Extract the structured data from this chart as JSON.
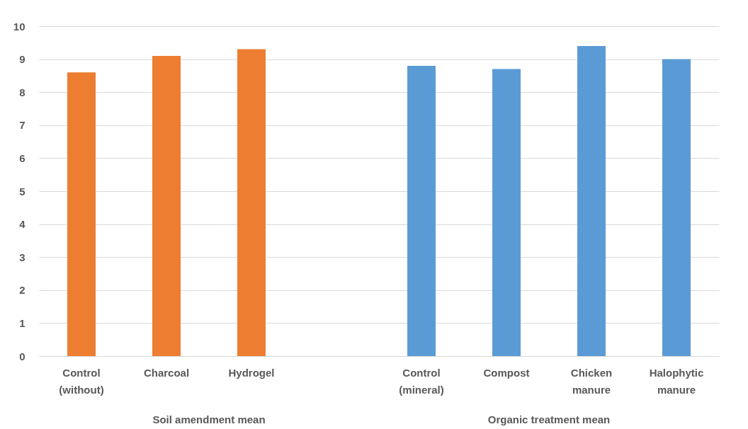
{
  "chart_data": {
    "type": "bar",
    "categories": [
      "Control (without)",
      "Charcoal",
      "Hydrogel",
      null,
      "Control (mineral)",
      "Compost",
      "Chicken manure",
      "Halophytic manure"
    ],
    "series": [
      {
        "color": "#ed7d31",
        "values": [
          8.6,
          9.1,
          9.3,
          null,
          null,
          null,
          null,
          null
        ]
      },
      {
        "color": "#5b9bd5",
        "values": [
          null,
          null,
          null,
          null,
          8.8,
          8.7,
          9.4,
          9.0
        ]
      }
    ],
    "ylim": [
      0,
      10
    ],
    "yticks": [
      0,
      1,
      2,
      3,
      4,
      5,
      6,
      7,
      8,
      9,
      10
    ],
    "grid": "y",
    "legend": false,
    "annotations": [
      "Soil amendment mean",
      "Organic treatment mean"
    ]
  }
}
